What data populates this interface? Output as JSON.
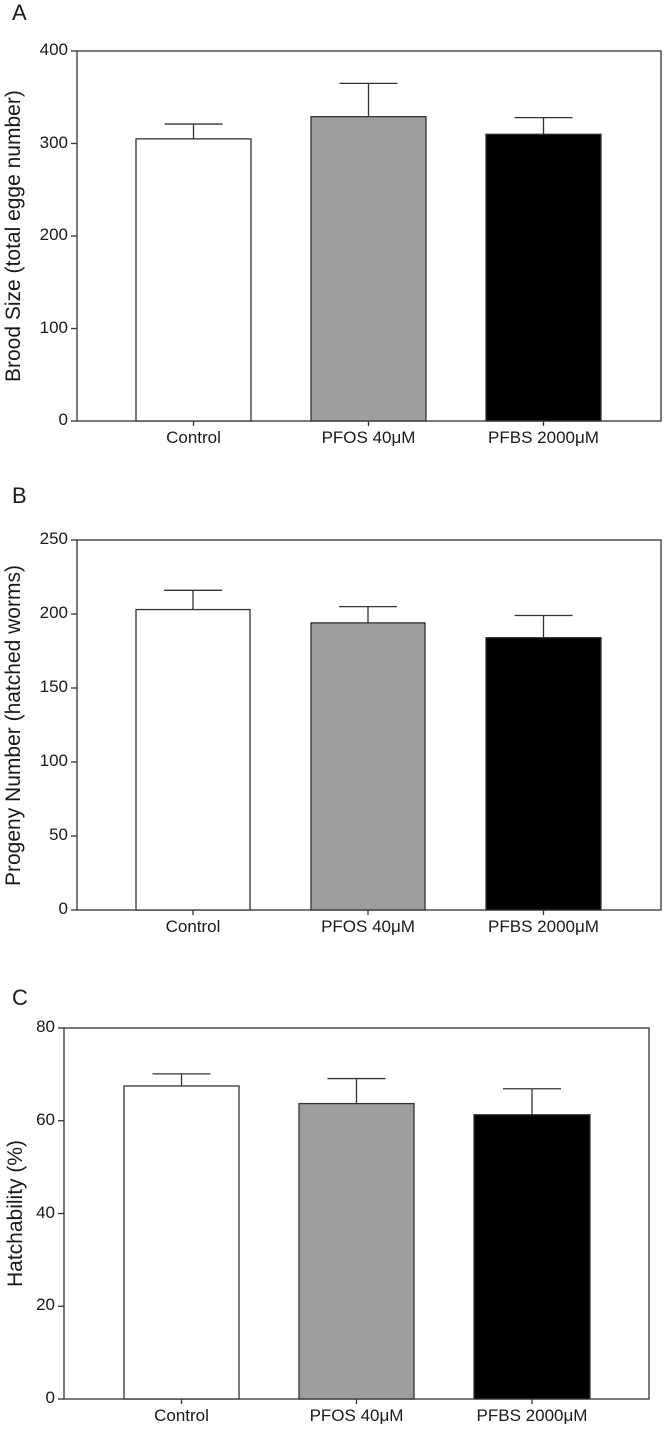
{
  "chart_data": [
    {
      "type": "bar",
      "panel": "A",
      "title": "",
      "xlabel": "",
      "ylabel": "Brood Size (total egge number)",
      "categories": [
        "Control",
        "PFOS 40μM",
        "PFBS 2000μM"
      ],
      "values": [
        305,
        329,
        310
      ],
      "error_upper": [
        321,
        365,
        328
      ],
      "yticks": [
        "0",
        "100",
        "200",
        "300",
        "400"
      ],
      "ylim": [
        0,
        400
      ],
      "colors": [
        "#ffffff",
        "#9e9e9e",
        "#000000"
      ],
      "grid": false,
      "legend": null
    },
    {
      "type": "bar",
      "panel": "B",
      "title": "",
      "xlabel": "",
      "ylabel": "Progeny Number (hatched worms)",
      "categories": [
        "Control",
        "PFOS 40μM",
        "PFBS 2000μM"
      ],
      "values": [
        203,
        194,
        184
      ],
      "error_upper": [
        216,
        205,
        199
      ],
      "yticks": [
        "0",
        "50",
        "100",
        "150",
        "200",
        "250"
      ],
      "ylim": [
        0,
        250
      ],
      "colors": [
        "#ffffff",
        "#9e9e9e",
        "#000000"
      ],
      "grid": false,
      "legend": null
    },
    {
      "type": "bar",
      "panel": "C",
      "title": "",
      "xlabel": "",
      "ylabel": "Hatchability (%)",
      "categories": [
        "Control",
        "PFOS 40μM",
        "PFBS 2000μM"
      ],
      "values": [
        67.5,
        63.7,
        61.3
      ],
      "error_upper": [
        70.1,
        69.1,
        66.9
      ],
      "yticks": [
        "0",
        "20",
        "40",
        "60",
        "80"
      ],
      "ylim": [
        0,
        80
      ],
      "colors": [
        "#ffffff",
        "#9e9e9e",
        "#000000"
      ],
      "grid": false,
      "legend": null
    }
  ],
  "panels": [
    {
      "letter": "A"
    },
    {
      "letter": "B"
    },
    {
      "letter": "C"
    }
  ]
}
